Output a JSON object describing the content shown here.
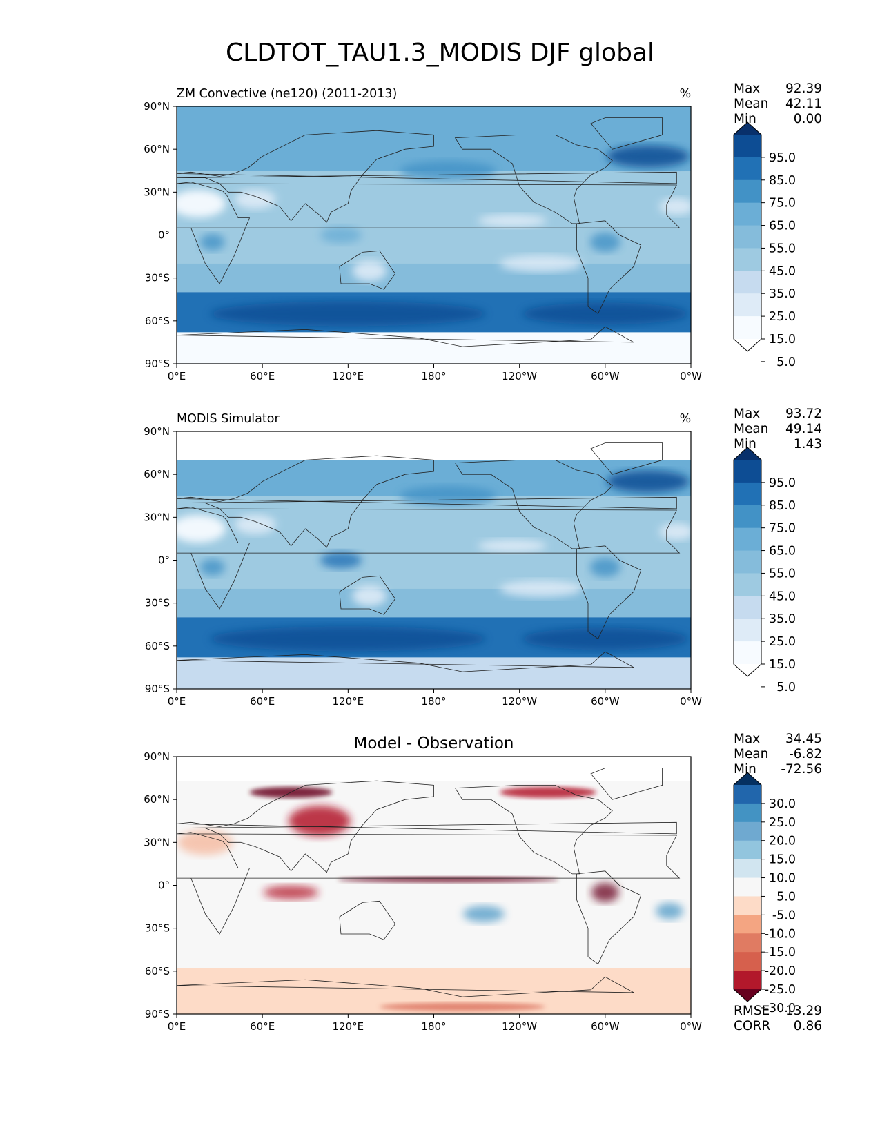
{
  "title": "CLDTOT_TAU1.3_MODIS DJF global",
  "lat_ticks": [
    "90°N",
    "60°N",
    "30°N",
    "0°",
    "30°S",
    "60°S",
    "90°S"
  ],
  "lon_ticks": [
    "0°E",
    "60°E",
    "120°E",
    "180°",
    "120°W",
    "60°W",
    "0°W"
  ],
  "panels": [
    {
      "id": "model",
      "left_title": "ZM Convective (ne120) (2011-2013)",
      "center_title": "",
      "units": "%",
      "stats": [
        {
          "label": "Max",
          "value": "92.39"
        },
        {
          "label": "Mean",
          "value": "42.11"
        },
        {
          "label": "Min",
          "value": "0.00"
        }
      ],
      "colorbar": {
        "labels": [
          "95.0",
          "85.0",
          "75.0",
          "65.0",
          "55.0",
          "45.0",
          "35.0",
          "25.0",
          "15.0",
          "5.0"
        ],
        "colors": [
          "#08306b",
          "#0d4d94",
          "#2171b5",
          "#4292c6",
          "#6baed6",
          "#85bcdb",
          "#9ecae1",
          "#c6dbef",
          "#deebf7",
          "#f7fbff",
          "#ffffff"
        ]
      },
      "footer_stats": []
    },
    {
      "id": "obs",
      "left_title": "MODIS Simulator",
      "center_title": "",
      "units": "%",
      "stats": [
        {
          "label": "Max",
          "value": "93.72"
        },
        {
          "label": "Mean",
          "value": "49.14"
        },
        {
          "label": "Min",
          "value": "1.43"
        }
      ],
      "colorbar": {
        "labels": [
          "95.0",
          "85.0",
          "75.0",
          "65.0",
          "55.0",
          "45.0",
          "35.0",
          "25.0",
          "15.0",
          "5.0"
        ],
        "colors": [
          "#08306b",
          "#0d4d94",
          "#2171b5",
          "#4292c6",
          "#6baed6",
          "#85bcdb",
          "#9ecae1",
          "#c6dbef",
          "#deebf7",
          "#f7fbff",
          "#ffffff"
        ]
      },
      "footer_stats": []
    },
    {
      "id": "diff",
      "left_title": "",
      "center_title": "Model - Observation",
      "units": "",
      "stats": [
        {
          "label": "Max",
          "value": "34.45"
        },
        {
          "label": "Mean",
          "value": "-6.82"
        },
        {
          "label": "Min",
          "value": "-72.56"
        }
      ],
      "colorbar": {
        "labels": [
          "30.0",
          "25.0",
          "20.0",
          "15.0",
          "10.0",
          "5.0",
          "-5.0",
          "-10.0",
          "-15.0",
          "-20.0",
          "-25.0",
          "-30.0"
        ],
        "colors": [
          "#053061",
          "#2166ac",
          "#4393c3",
          "#6fa9d0",
          "#92c5de",
          "#d1e5f0",
          "#f7f7f7",
          "#fddbc7",
          "#f4a582",
          "#e07b62",
          "#d6604d",
          "#b2182b",
          "#67001f"
        ]
      },
      "footer_stats": [
        {
          "label": "RMSE",
          "value": "13.29"
        },
        {
          "label": "CORR",
          "value": "0.86"
        }
      ]
    }
  ]
}
